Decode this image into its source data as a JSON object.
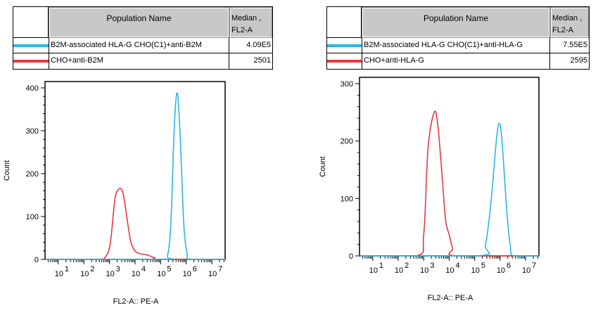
{
  "tables": [
    {
      "header": {
        "name": "Population Name",
        "median_line1": "Median ,",
        "median_line2": "FL2-A"
      },
      "rows": [
        {
          "color": "#29b6e6",
          "name": "B2M-associated HLA-G CHO(C1)+anti-B2M",
          "median": "4.09E5"
        },
        {
          "color": "#e8383d",
          "name": "CHO+anti-B2M",
          "median": "2501"
        }
      ]
    },
    {
      "header": {
        "name": "Population Name",
        "median_line1": "Median ,",
        "median_line2": "FL2-A"
      },
      "rows": [
        {
          "color": "#29b6e6",
          "name": "B2M-associated HLA-G CHO(C1)+anti-HLA-G",
          "median": "7.55E5"
        },
        {
          "color": "#e8383d",
          "name": "CHO+anti-HLA-G",
          "median": "2595"
        }
      ]
    }
  ],
  "chart_data": [
    {
      "type": "line",
      "xlabel": "FL2-A:: PE-A",
      "ylabel": "Count",
      "x_scale": "log",
      "xlim_log10": [
        0.48,
        7.52
      ],
      "ylim": [
        0,
        400
      ],
      "yticks": [
        0,
        100,
        200,
        300,
        400
      ],
      "xtick_base": "10",
      "xtick_exponents": [
        "1",
        "2",
        "3",
        "4",
        "5",
        "6",
        "7"
      ],
      "grid": false,
      "series": [
        {
          "color": "#e8383d",
          "points_log10x_count": [
            [
              0.48,
              0
            ],
            [
              2.48,
              0
            ],
            [
              2.83,
              5
            ],
            [
              3.03,
              37
            ],
            [
              3.2,
              135
            ],
            [
              3.33,
              162
            ],
            [
              3.52,
              157
            ],
            [
              3.72,
              81
            ],
            [
              3.85,
              37
            ],
            [
              4.07,
              16
            ],
            [
              4.43,
              11
            ],
            [
              4.76,
              4
            ],
            [
              4.96,
              0
            ],
            [
              7.52,
              0
            ]
          ]
        },
        {
          "color": "#29b6e6",
          "points_log10x_count": [
            [
              0.48,
              0
            ],
            [
              5.04,
              0
            ],
            [
              5.26,
              7
            ],
            [
              5.4,
              86
            ],
            [
              5.53,
              305
            ],
            [
              5.65,
              388
            ],
            [
              5.77,
              278
            ],
            [
              5.9,
              86
            ],
            [
              6.03,
              15
            ],
            [
              6.17,
              0
            ],
            [
              7.52,
              0
            ]
          ]
        }
      ]
    },
    {
      "type": "line",
      "xlabel": "FL2-A:: PE-A",
      "ylabel": "Count",
      "x_scale": "log",
      "xlim_log10": [
        0.48,
        7.52
      ],
      "ylim": [
        0,
        300
      ],
      "yticks": [
        0,
        100,
        200,
        300
      ],
      "xtick_base": "10",
      "xtick_exponents": [
        "1",
        "2",
        "3",
        "4",
        "5",
        "6",
        "7"
      ],
      "grid": false,
      "series": [
        {
          "color": "#e8383d",
          "points_log10x_count": [
            [
              0.48,
              0
            ],
            [
              2.72,
              0
            ],
            [
              3.0,
              37
            ],
            [
              3.17,
              188
            ],
            [
              3.41,
              250
            ],
            [
              3.55,
              229
            ],
            [
              3.72,
              140
            ],
            [
              3.86,
              62
            ],
            [
              4.0,
              37
            ],
            [
              4.13,
              13
            ],
            [
              4.27,
              0
            ],
            [
              7.52,
              0
            ]
          ]
        },
        {
          "color": "#29b6e6",
          "points_log10x_count": [
            [
              0.48,
              0
            ],
            [
              5.15,
              0
            ],
            [
              5.43,
              21
            ],
            [
              5.65,
              99
            ],
            [
              5.85,
              201
            ],
            [
              5.96,
              231
            ],
            [
              6.07,
              201
            ],
            [
              6.26,
              78
            ],
            [
              6.4,
              17
            ],
            [
              6.54,
              0
            ],
            [
              7.52,
              0
            ]
          ]
        }
      ]
    }
  ]
}
